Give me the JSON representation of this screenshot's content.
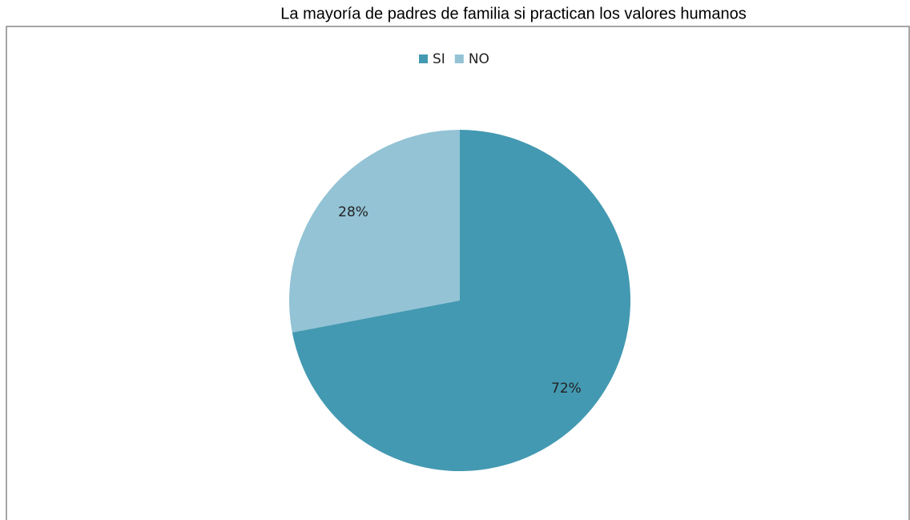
{
  "chart_data": {
    "type": "pie",
    "title": "La mayoría de padres de familia si practican los valores humanos",
    "categories": [
      "SI",
      "NO"
    ],
    "values": [
      72,
      28
    ],
    "value_labels": [
      "72%",
      "28%"
    ],
    "colors": [
      "#4399b1",
      "#93c3d5"
    ],
    "legend": "top"
  }
}
